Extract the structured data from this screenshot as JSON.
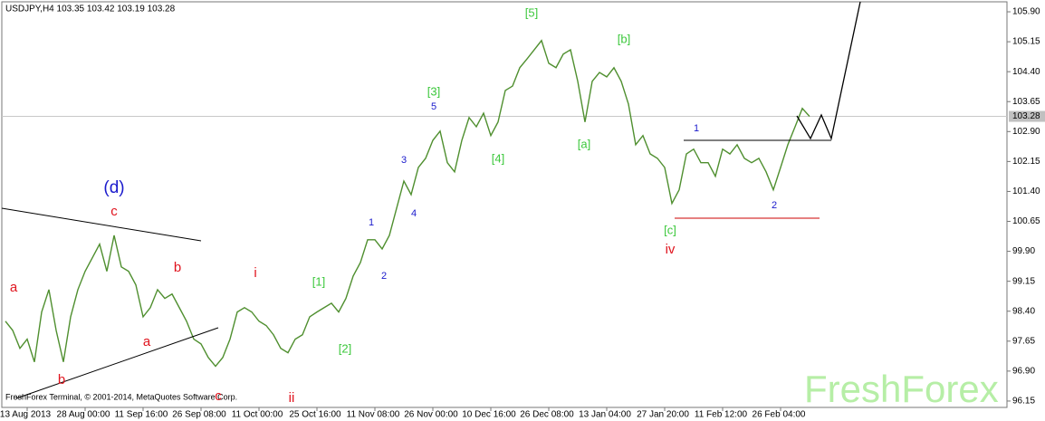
{
  "chart_data": {
    "type": "line",
    "title": "USDJPY,H4  103.35 103.42 103.19 103.28",
    "footer": "FreshForex Terminal, © 2001-2014, MetaQuotes Software Corp.",
    "watermark": "FreshForex",
    "last_price": 103.28,
    "color": "#4f8f2f",
    "categories": [
      null,
      null,
      null,
      "13 Aug 2013",
      null,
      null,
      null,
      null,
      null,
      null,
      null,
      "28 Aug 00:00",
      null,
      null,
      null,
      null,
      null,
      null,
      null,
      "11 Sep 16:00",
      null,
      null,
      null,
      null,
      null,
      null,
      null,
      "26 Sep 08:00",
      null,
      null,
      null,
      null,
      null,
      null,
      null,
      "11 Oct 00:00",
      null,
      null,
      null,
      null,
      null,
      null,
      null,
      "25 Oct 16:00",
      null,
      null,
      null,
      null,
      null,
      null,
      null,
      "11 Nov 08:00",
      null,
      null,
      null,
      null,
      null,
      null,
      null,
      "26 Nov 00:00",
      null,
      null,
      null,
      null,
      null,
      null,
      null,
      "10 Dec 16:00",
      null,
      null,
      null,
      null,
      null,
      null,
      null,
      "26 Dec 08:00",
      null,
      null,
      null,
      null,
      null,
      null,
      null,
      "13 Jan 04:00",
      null,
      null,
      null,
      null,
      null,
      null,
      null,
      "27 Jan 20:00",
      null,
      null,
      null,
      null,
      null,
      null,
      null,
      "11 Feb 12:00",
      null,
      null,
      null,
      null,
      null,
      null,
      null,
      "26 Feb 04:00",
      null,
      null,
      null,
      null
    ],
    "values": [
      98.15,
      97.92,
      97.47,
      97.7,
      97.13,
      98.38,
      98.94,
      97.92,
      97.13,
      98.26,
      98.94,
      99.4,
      99.74,
      100.08,
      99.4,
      100.3,
      99.51,
      99.4,
      99.06,
      98.26,
      98.49,
      98.94,
      98.72,
      98.83,
      98.49,
      98.15,
      97.7,
      97.58,
      97.24,
      97.02,
      97.24,
      97.7,
      98.38,
      98.49,
      98.38,
      98.15,
      98.04,
      97.81,
      97.47,
      97.36,
      97.7,
      97.81,
      98.26,
      98.38,
      98.49,
      98.6,
      98.38,
      98.72,
      99.28,
      99.62,
      100.19,
      100.19,
      99.96,
      100.3,
      100.98,
      101.66,
      101.32,
      102.0,
      102.23,
      102.68,
      102.91,
      102.12,
      101.89,
      102.68,
      103.25,
      103.02,
      103.36,
      102.8,
      103.14,
      103.93,
      104.04,
      104.5,
      104.72,
      104.95,
      105.18,
      104.61,
      104.5,
      104.84,
      104.95,
      104.16,
      103.14,
      104.16,
      104.38,
      104.27,
      104.5,
      104.16,
      103.59,
      102.57,
      102.8,
      102.34,
      102.23,
      102.0,
      101.1,
      101.44,
      102.34,
      102.46,
      102.12,
      102.12,
      101.78,
      102.46,
      102.34,
      102.57,
      102.23,
      102.12,
      102.23,
      101.89,
      101.44,
      102.0,
      102.57,
      103.02,
      103.48,
      103.28
    ],
    "ylim": [
      95.99,
      106.15
    ],
    "yticks": [
      {
        "value": 105.9,
        "label": "105.90"
      },
      {
        "value": 105.15,
        "label": "105.15"
      },
      {
        "value": 104.4,
        "label": "104.40"
      },
      {
        "value": 103.65,
        "label": "103.65"
      },
      {
        "value": 102.9,
        "label": "102.90"
      },
      {
        "value": 102.15,
        "label": "102.15"
      },
      {
        "value": 101.4,
        "label": "101.40"
      },
      {
        "value": 100.65,
        "label": "100.65"
      },
      {
        "value": 99.9,
        "label": "99.90"
      },
      {
        "value": 99.15,
        "label": "99.15"
      },
      {
        "value": 98.4,
        "label": "98.40"
      },
      {
        "value": 97.65,
        "label": "97.65"
      },
      {
        "value": 96.9,
        "label": "96.90"
      },
      {
        "value": 96.15,
        "label": "96.15"
      }
    ],
    "annotations": [
      "(d)",
      "c",
      "a",
      "b",
      "a",
      "b",
      "c",
      "i",
      "ii",
      "[1]",
      "[2]",
      "1",
      "2",
      "3",
      "4",
      "5",
      "[3]",
      "[4]",
      "[5]",
      "[a]",
      "[b]",
      "[c]",
      "iv",
      "1",
      "2"
    ]
  }
}
